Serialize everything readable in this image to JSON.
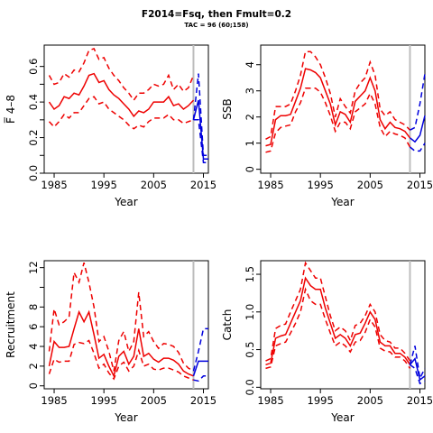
{
  "title": "F2014=Fsq, then Fmult=0.2",
  "subtitle": "TAC = 96 (60;158)",
  "colors": {
    "historic": "#ee0000",
    "projection": "#0000dd",
    "marker": "#bdbdbd"
  },
  "chart_data": [
    {
      "type": "line",
      "ylabel": "F̅ 4–8",
      "xlabel": "Year",
      "xlim": [
        1983,
        2016
      ],
      "ylim": [
        0,
        0.72
      ],
      "xticks": [
        "1985",
        "1995",
        "2005",
        "2015"
      ],
      "yticks": [
        "0.0",
        "0.2",
        "0.4",
        "0.6"
      ],
      "x_ticks_minor": [
        0.1,
        0.3,
        0.5
      ],
      "vline": 2013,
      "series": [
        {
          "kind": "historic",
          "style": "solid",
          "x": [
            1984,
            1985,
            1986,
            1987,
            1988,
            1989,
            1990,
            1991,
            1992,
            1993,
            1994,
            1995,
            1996,
            1997,
            1998,
            1999,
            2000,
            2001,
            2002,
            2003,
            2004,
            2005,
            2006,
            2007,
            2008,
            2009,
            2010,
            2011,
            2012,
            2013
          ],
          "y": [
            0.4,
            0.36,
            0.38,
            0.43,
            0.42,
            0.45,
            0.44,
            0.49,
            0.55,
            0.56,
            0.51,
            0.52,
            0.47,
            0.44,
            0.42,
            0.39,
            0.36,
            0.32,
            0.35,
            0.34,
            0.36,
            0.4,
            0.4,
            0.4,
            0.43,
            0.38,
            0.39,
            0.36,
            0.38,
            0.41
          ]
        },
        {
          "kind": "historic",
          "style": "dashed",
          "x": [
            1984,
            1985,
            1986,
            1987,
            1988,
            1989,
            1990,
            1991,
            1992,
            1993,
            1994,
            1995,
            1996,
            1997,
            1998,
            1999,
            2000,
            2001,
            2002,
            2003,
            2004,
            2005,
            2006,
            2007,
            2008,
            2009,
            2010,
            2011,
            2012,
            2013
          ],
          "y": [
            0.55,
            0.5,
            0.51,
            0.56,
            0.54,
            0.58,
            0.57,
            0.62,
            0.69,
            0.7,
            0.64,
            0.65,
            0.59,
            0.55,
            0.52,
            0.48,
            0.45,
            0.41,
            0.45,
            0.45,
            0.47,
            0.5,
            0.49,
            0.5,
            0.55,
            0.47,
            0.5,
            0.46,
            0.48,
            0.55
          ]
        },
        {
          "kind": "historic",
          "style": "dashed",
          "x": [
            1984,
            1985,
            1986,
            1987,
            1988,
            1989,
            1990,
            1991,
            1992,
            1993,
            1994,
            1995,
            1996,
            1997,
            1998,
            1999,
            2000,
            2001,
            2002,
            2003,
            2004,
            2005,
            2006,
            2007,
            2008,
            2009,
            2010,
            2011,
            2012,
            2013
          ],
          "y": [
            0.29,
            0.26,
            0.29,
            0.33,
            0.31,
            0.34,
            0.34,
            0.38,
            0.42,
            0.43,
            0.39,
            0.4,
            0.36,
            0.34,
            0.32,
            0.3,
            0.27,
            0.25,
            0.27,
            0.26,
            0.29,
            0.31,
            0.31,
            0.31,
            0.33,
            0.3,
            0.3,
            0.28,
            0.29,
            0.3
          ]
        },
        {
          "kind": "projection",
          "style": "solid",
          "x": [
            2013,
            2014,
            2015,
            2016
          ],
          "y": [
            0.3,
            0.41,
            0.08,
            0.08
          ]
        },
        {
          "kind": "projection",
          "style": "dashed",
          "x": [
            2013,
            2014,
            2015,
            2016
          ],
          "y": [
            0.3,
            0.56,
            0.1,
            0.1
          ]
        },
        {
          "kind": "projection",
          "style": "dashed",
          "x": [
            2013,
            2014,
            2015,
            2016
          ],
          "y": [
            0.3,
            0.3,
            0.06,
            0.06
          ]
        }
      ]
    },
    {
      "type": "line",
      "ylabel": "SSB",
      "xlabel": "Year",
      "xlim": [
        1983,
        2016
      ],
      "ylim": [
        -0.15,
        4.75
      ],
      "xticks": [
        "1985",
        "1995",
        "2005",
        "2015"
      ],
      "yticks": [
        "0",
        "1",
        "2",
        "3",
        "4"
      ],
      "vline": 2013,
      "series": [
        {
          "kind": "historic",
          "style": "solid",
          "x": [
            1984,
            1985,
            1986,
            1987,
            1988,
            1989,
            1990,
            1991,
            1992,
            1993,
            1994,
            1995,
            1996,
            1997,
            1998,
            1999,
            2000,
            2001,
            2002,
            2003,
            2004,
            2005,
            2006,
            2007,
            2008,
            2009,
            2010,
            2011,
            2012,
            2013
          ],
          "y": [
            0.9,
            0.95,
            1.9,
            2.05,
            2.05,
            2.1,
            2.6,
            3.1,
            3.85,
            3.8,
            3.7,
            3.5,
            3.0,
            2.5,
            1.7,
            2.2,
            2.1,
            1.8,
            2.6,
            2.8,
            3.0,
            3.5,
            3.0,
            1.9,
            1.55,
            1.8,
            1.6,
            1.55,
            1.45,
            1.2
          ]
        },
        {
          "kind": "historic",
          "style": "dashed",
          "x": [
            1984,
            1985,
            1986,
            1987,
            1988,
            1989,
            1990,
            1991,
            1992,
            1993,
            1994,
            1995,
            1996,
            1997,
            1998,
            1999,
            2000,
            2001,
            2002,
            2003,
            2004,
            2005,
            2006,
            2007,
            2008,
            2009,
            2010,
            2011,
            2012,
            2013
          ],
          "y": [
            1.15,
            1.25,
            2.4,
            2.4,
            2.4,
            2.5,
            3.0,
            3.6,
            4.5,
            4.5,
            4.3,
            4.0,
            3.5,
            2.9,
            2.0,
            2.7,
            2.4,
            2.15,
            3.0,
            3.3,
            3.5,
            4.1,
            3.6,
            2.3,
            2.05,
            2.2,
            1.9,
            1.8,
            1.7,
            1.5
          ]
        },
        {
          "kind": "historic",
          "style": "dashed",
          "x": [
            1984,
            1985,
            1986,
            1987,
            1988,
            1989,
            1990,
            1991,
            1992,
            1993,
            1994,
            1995,
            1996,
            1997,
            1998,
            1999,
            2000,
            2001,
            2002,
            2003,
            2004,
            2005,
            2006,
            2007,
            2008,
            2009,
            2010,
            2011,
            2012,
            2013
          ],
          "y": [
            0.65,
            0.7,
            1.4,
            1.6,
            1.65,
            1.7,
            2.2,
            2.55,
            3.1,
            3.1,
            3.1,
            2.95,
            2.55,
            2.05,
            1.45,
            1.8,
            1.8,
            1.55,
            2.2,
            2.35,
            2.5,
            2.9,
            2.5,
            1.6,
            1.25,
            1.45,
            1.35,
            1.3,
            1.2,
            0.85
          ]
        },
        {
          "kind": "projection",
          "style": "solid",
          "x": [
            2013,
            2014,
            2015,
            2016
          ],
          "y": [
            1.2,
            1.05,
            1.3,
            2.05
          ]
        },
        {
          "kind": "projection",
          "style": "dashed",
          "x": [
            2013,
            2014,
            2015,
            2016
          ],
          "y": [
            1.5,
            1.6,
            2.5,
            3.65
          ]
        },
        {
          "kind": "projection",
          "style": "dashed",
          "x": [
            2013,
            2014,
            2015,
            2016
          ],
          "y": [
            0.85,
            0.7,
            0.7,
            1.0
          ]
        }
      ]
    },
    {
      "type": "line",
      "ylabel": "Recruitment",
      "xlabel": "Year",
      "xlim": [
        1983,
        2016
      ],
      "ylim": [
        -0.3,
        12.7
      ],
      "xticks": [
        "1985",
        "1995",
        "2005",
        "2015"
      ],
      "yticks": [
        "0",
        "2",
        "4",
        "6",
        "8",
        "",
        "12"
      ],
      "yticks_values": [
        0,
        2,
        4,
        6,
        8,
        10,
        12
      ],
      "vline": 2013,
      "series": [
        {
          "kind": "historic",
          "style": "solid",
          "x": [
            1984,
            1985,
            1986,
            1987,
            1988,
            1989,
            1990,
            1991,
            1992,
            1993,
            1994,
            1995,
            1996,
            1997,
            1998,
            1999,
            2000,
            2001,
            2002,
            2003,
            2004,
            2005,
            2006,
            2007,
            2008,
            2009,
            2010,
            2011,
            2012,
            2013
          ],
          "y": [
            2.0,
            4.5,
            3.9,
            3.9,
            4.0,
            5.8,
            7.5,
            6.5,
            7.5,
            5.2,
            2.8,
            3.2,
            2.0,
            1.0,
            3.0,
            3.5,
            2.2,
            3.0,
            5.8,
            3.0,
            3.3,
            2.7,
            2.4,
            2.8,
            2.8,
            2.6,
            2.2,
            1.5,
            1.2,
            1.0
          ]
        },
        {
          "kind": "historic",
          "style": "dashed",
          "x": [
            1984,
            1985,
            1986,
            1987,
            1988,
            1989,
            1990,
            1991,
            1992,
            1993,
            1994,
            1995,
            1996,
            1997,
            1998,
            1999,
            2000,
            2001,
            2002,
            2003,
            2004,
            2005,
            2006,
            2007,
            2008,
            2009,
            2010,
            2011,
            2012,
            2013
          ],
          "y": [
            3.5,
            7.8,
            6.2,
            6.5,
            7.0,
            11.5,
            10.5,
            12.5,
            10.5,
            8.0,
            4.5,
            5.0,
            3.5,
            1.5,
            4.6,
            5.5,
            3.5,
            4.5,
            9.5,
            5.0,
            5.5,
            4.5,
            3.8,
            4.3,
            4.2,
            4.0,
            3.4,
            2.3,
            1.8,
            1.5
          ]
        },
        {
          "kind": "historic",
          "style": "dashed",
          "x": [
            1984,
            1985,
            1986,
            1987,
            1988,
            1989,
            1990,
            1991,
            1992,
            1993,
            1994,
            1995,
            1996,
            1997,
            1998,
            1999,
            2000,
            2001,
            2002,
            2003,
            2004,
            2005,
            2006,
            2007,
            2008,
            2009,
            2010,
            2011,
            2012,
            2013
          ],
          "y": [
            1.2,
            2.7,
            2.4,
            2.5,
            2.5,
            4.2,
            4.4,
            4.3,
            4.6,
            3.3,
            1.8,
            2.2,
            1.3,
            0.7,
            2.0,
            2.4,
            1.5,
            2.0,
            3.6,
            2.0,
            2.2,
            1.7,
            1.6,
            1.8,
            1.8,
            1.6,
            1.4,
            1.0,
            0.8,
            0.6
          ]
        },
        {
          "kind": "projection",
          "style": "solid",
          "x": [
            2013,
            2014,
            2015,
            2016
          ],
          "y": [
            1.0,
            2.5,
            2.5,
            2.5
          ]
        },
        {
          "kind": "projection",
          "style": "dashed",
          "x": [
            2013,
            2014,
            2015,
            2016
          ],
          "y": [
            1.5,
            3.5,
            5.8,
            5.8
          ]
        },
        {
          "kind": "projection",
          "style": "dashed",
          "x": [
            2013,
            2014,
            2015,
            2016
          ],
          "y": [
            0.6,
            0.5,
            1.0,
            1.0
          ]
        }
      ]
    },
    {
      "type": "line",
      "ylabel": "Catch",
      "xlabel": "Year",
      "xlim": [
        1983,
        2016
      ],
      "ylim": [
        -0.02,
        1.68
      ],
      "xticks": [
        "1985",
        "1995",
        "2005",
        "2015"
      ],
      "yticks": [
        "0.0",
        "0.5",
        "1.0",
        "1.5"
      ],
      "vline": 2013,
      "series": [
        {
          "kind": "historic",
          "style": "solid",
          "x": [
            1984,
            1985,
            1986,
            1987,
            1988,
            1989,
            1990,
            1991,
            1992,
            1993,
            1994,
            1995,
            1996,
            1997,
            1998,
            1999,
            2000,
            2001,
            2002,
            2003,
            2004,
            2005,
            2006,
            2007,
            2008,
            2009,
            2010,
            2011,
            2012,
            2013
          ],
          "y": [
            0.3,
            0.32,
            0.65,
            0.68,
            0.7,
            0.85,
            1.0,
            1.15,
            1.45,
            1.35,
            1.3,
            1.3,
            1.05,
            0.85,
            0.65,
            0.7,
            0.65,
            0.55,
            0.7,
            0.72,
            0.85,
            1.0,
            0.9,
            0.6,
            0.55,
            0.55,
            0.45,
            0.45,
            0.4,
            0.3
          ]
        },
        {
          "kind": "historic",
          "style": "dashed",
          "x": [
            1984,
            1985,
            1986,
            1987,
            1988,
            1989,
            1990,
            1991,
            1992,
            1993,
            1994,
            1995,
            1996,
            1997,
            1998,
            1999,
            2000,
            2001,
            2002,
            2003,
            2004,
            2005,
            2006,
            2007,
            2008,
            2009,
            2010,
            2011,
            2012,
            2013
          ],
          "y": [
            0.35,
            0.38,
            0.78,
            0.82,
            0.84,
            1.0,
            1.15,
            1.3,
            1.65,
            1.55,
            1.45,
            1.45,
            1.2,
            0.95,
            0.75,
            0.8,
            0.75,
            0.62,
            0.82,
            0.85,
            0.95,
            1.1,
            1.0,
            0.7,
            0.62,
            0.6,
            0.52,
            0.52,
            0.45,
            0.35
          ]
        },
        {
          "kind": "historic",
          "style": "dashed",
          "x": [
            1984,
            1985,
            1986,
            1987,
            1988,
            1989,
            1990,
            1991,
            1992,
            1993,
            1994,
            1995,
            1996,
            1997,
            1998,
            1999,
            2000,
            2001,
            2002,
            2003,
            2004,
            2005,
            2006,
            2007,
            2008,
            2009,
            2010,
            2011,
            2012,
            2013
          ],
          "y": [
            0.25,
            0.27,
            0.55,
            0.58,
            0.6,
            0.72,
            0.85,
            1.0,
            1.3,
            1.15,
            1.1,
            1.1,
            0.9,
            0.72,
            0.55,
            0.6,
            0.55,
            0.47,
            0.6,
            0.62,
            0.73,
            0.9,
            0.8,
            0.52,
            0.48,
            0.47,
            0.4,
            0.4,
            0.35,
            0.25
          ]
        },
        {
          "kind": "projection",
          "style": "solid",
          "x": [
            2013,
            2014,
            2015,
            2016
          ],
          "y": [
            0.3,
            0.38,
            0.1,
            0.15
          ]
        },
        {
          "kind": "projection",
          "style": "dashed",
          "x": [
            2013,
            2014,
            2015,
            2016
          ],
          "y": [
            0.3,
            0.55,
            0.12,
            0.25
          ]
        },
        {
          "kind": "projection",
          "style": "dashed",
          "x": [
            2013,
            2014,
            2015,
            2016
          ],
          "y": [
            0.3,
            0.25,
            0.05,
            0.08
          ]
        }
      ]
    }
  ]
}
